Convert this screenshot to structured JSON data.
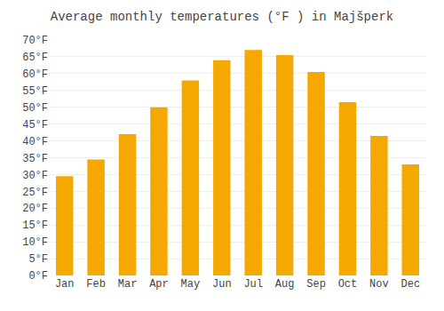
{
  "chart_data": {
    "type": "bar",
    "title": "Average monthly temperatures (°F ) in Majšperk",
    "categories": [
      "Jan",
      "Feb",
      "Mar",
      "Apr",
      "May",
      "Jun",
      "Jul",
      "Aug",
      "Sep",
      "Oct",
      "Nov",
      "Dec"
    ],
    "values": [
      29.5,
      34.5,
      42.0,
      50.0,
      58.0,
      64.0,
      67.0,
      65.5,
      60.5,
      51.5,
      41.5,
      33.0
    ],
    "color": "#F5A800",
    "ylim": [
      0,
      70
    ],
    "yticks": [
      {
        "value": 0,
        "label": "0°F"
      },
      {
        "value": 5,
        "label": "5°F"
      },
      {
        "value": 10,
        "label": "10°F"
      },
      {
        "value": 15,
        "label": "15°F"
      },
      {
        "value": 20,
        "label": "20°F"
      },
      {
        "value": 25,
        "label": "25°F"
      },
      {
        "value": 30,
        "label": "30°F"
      },
      {
        "value": 35,
        "label": "35°F"
      },
      {
        "value": 40,
        "label": "40°F"
      },
      {
        "value": 45,
        "label": "45°F"
      },
      {
        "value": 50,
        "label": "50°F"
      },
      {
        "value": 55,
        "label": "55°F"
      },
      {
        "value": 60,
        "label": "60°F"
      },
      {
        "value": 65,
        "label": "65°F"
      },
      {
        "value": 70,
        "label": "70°F"
      }
    ],
    "grid": true
  }
}
